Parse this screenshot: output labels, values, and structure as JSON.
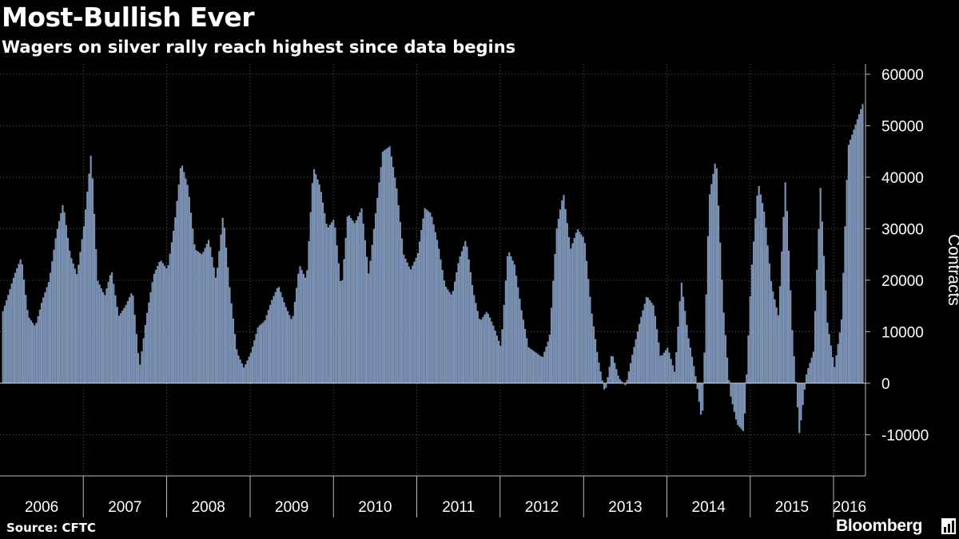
{
  "header": {
    "title": "Most-Bullish Ever",
    "subtitle": "Wagers on silver rally reach highest since data begins"
  },
  "footer": {
    "source": "Source: CFTC",
    "brand": "Bloomberg",
    "brand_icon": "chart-icon"
  },
  "colors": {
    "background": "#000000",
    "bar": "#7B91B3",
    "grid": "#5a5a5a",
    "text": "#ffffff"
  },
  "chart_data": {
    "type": "bar",
    "title": "Most-Bullish Ever",
    "subtitle": "Wagers on silver rally reach highest since data begins",
    "ylabel": "Contracts",
    "xlabel": "",
    "ylim": [
      -18000,
      62000
    ],
    "yticks": [
      -10000,
      0,
      10000,
      20000,
      30000,
      40000,
      50000,
      60000
    ],
    "ytick_labels": [
      "-10000",
      "0",
      "10000",
      "20000",
      "30000",
      "40000",
      "50000",
      "60000"
    ],
    "xlim": [
      "2006-01-01",
      "2016-05-20"
    ],
    "year_labels": [
      "2006",
      "2007",
      "2008",
      "2009",
      "2010",
      "2011",
      "2012",
      "2013",
      "2014",
      "2015",
      "2016"
    ],
    "grid": true,
    "legend": "none",
    "series": [
      {
        "values": [
          [
            "2006-01-10",
            14000
          ],
          [
            "2006-02-01",
            17000
          ],
          [
            "2006-03-01",
            21000
          ],
          [
            "2006-04-01",
            24500
          ],
          [
            "2006-05-01",
            13000
          ],
          [
            "2006-06-01",
            11000
          ],
          [
            "2006-07-01",
            16000
          ],
          [
            "2006-08-01",
            20000
          ],
          [
            "2006-09-01",
            29000
          ],
          [
            "2006-10-01",
            35000
          ],
          [
            "2006-11-01",
            25000
          ],
          [
            "2006-12-01",
            21000
          ],
          [
            "2007-01-01",
            31000
          ],
          [
            "2007-02-01",
            45000
          ],
          [
            "2007-03-01",
            20000
          ],
          [
            "2007-04-01",
            17000
          ],
          [
            "2007-05-01",
            22000
          ],
          [
            "2007-06-01",
            13000
          ],
          [
            "2007-07-01",
            15000
          ],
          [
            "2007-08-01",
            18000
          ],
          [
            "2007-09-01",
            3000
          ],
          [
            "2007-10-01",
            13000
          ],
          [
            "2007-11-01",
            21000
          ],
          [
            "2007-12-01",
            24000
          ],
          [
            "2008-01-01",
            22000
          ],
          [
            "2008-02-01",
            31000
          ],
          [
            "2008-03-01",
            43000
          ],
          [
            "2008-04-01",
            38000
          ],
          [
            "2008-05-01",
            26000
          ],
          [
            "2008-06-01",
            25000
          ],
          [
            "2008-07-01",
            28000
          ],
          [
            "2008-08-01",
            20000
          ],
          [
            "2008-09-01",
            33000
          ],
          [
            "2008-10-01",
            18000
          ],
          [
            "2008-11-01",
            6000
          ],
          [
            "2008-12-01",
            3000
          ],
          [
            "2009-01-01",
            6000
          ],
          [
            "2009-02-01",
            11000
          ],
          [
            "2009-03-01",
            12000
          ],
          [
            "2009-04-01",
            16000
          ],
          [
            "2009-05-01",
            19000
          ],
          [
            "2009-06-01",
            15000
          ],
          [
            "2009-07-01",
            12000
          ],
          [
            "2009-08-01",
            23000
          ],
          [
            "2009-09-01",
            20000
          ],
          [
            "2009-10-01",
            42000
          ],
          [
            "2009-11-01",
            38000
          ],
          [
            "2009-12-01",
            30000
          ],
          [
            "2010-01-01",
            32000
          ],
          [
            "2010-02-01",
            18000
          ],
          [
            "2010-03-01",
            33000
          ],
          [
            "2010-04-01",
            31000
          ],
          [
            "2010-05-01",
            34000
          ],
          [
            "2010-06-01",
            21000
          ],
          [
            "2010-07-01",
            33000
          ],
          [
            "2010-08-01",
            45000
          ],
          [
            "2010-09-01",
            46000
          ],
          [
            "2010-10-01",
            38000
          ],
          [
            "2010-11-01",
            25000
          ],
          [
            "2010-12-01",
            22000
          ],
          [
            "2011-01-01",
            25000
          ],
          [
            "2011-02-01",
            34000
          ],
          [
            "2011-03-01",
            33000
          ],
          [
            "2011-04-01",
            27000
          ],
          [
            "2011-05-01",
            19000
          ],
          [
            "2011-06-01",
            17000
          ],
          [
            "2011-07-01",
            24000
          ],
          [
            "2011-08-01",
            28000
          ],
          [
            "2011-09-01",
            18000
          ],
          [
            "2011-10-01",
            12000
          ],
          [
            "2011-11-01",
            14000
          ],
          [
            "2011-12-01",
            11000
          ],
          [
            "2012-01-01",
            7000
          ],
          [
            "2012-02-01",
            26000
          ],
          [
            "2012-03-01",
            23000
          ],
          [
            "2012-04-01",
            14000
          ],
          [
            "2012-05-01",
            7000
          ],
          [
            "2012-06-01",
            6000
          ],
          [
            "2012-07-01",
            5000
          ],
          [
            "2012-08-01",
            9000
          ],
          [
            "2012-09-01",
            30000
          ],
          [
            "2012-10-01",
            37000
          ],
          [
            "2012-11-01",
            26000
          ],
          [
            "2012-12-01",
            30000
          ],
          [
            "2013-01-01",
            28000
          ],
          [
            "2013-02-01",
            14000
          ],
          [
            "2013-03-01",
            5000
          ],
          [
            "2013-04-01",
            -2000
          ],
          [
            "2013-05-01",
            6000
          ],
          [
            "2013-06-01",
            1000
          ],
          [
            "2013-07-01",
            -500
          ],
          [
            "2013-08-01",
            6000
          ],
          [
            "2013-09-01",
            12000
          ],
          [
            "2013-10-01",
            17000
          ],
          [
            "2013-11-01",
            15000
          ],
          [
            "2013-12-01",
            5000
          ],
          [
            "2014-01-01",
            7000
          ],
          [
            "2014-02-01",
            2000
          ],
          [
            "2014-03-01",
            20000
          ],
          [
            "2014-04-01",
            9000
          ],
          [
            "2014-05-01",
            2000
          ],
          [
            "2014-06-01",
            -8000
          ],
          [
            "2014-07-01",
            36000
          ],
          [
            "2014-08-01",
            44000
          ],
          [
            "2014-09-01",
            15000
          ],
          [
            "2014-10-01",
            -2000
          ],
          [
            "2014-11-01",
            -8000
          ],
          [
            "2014-12-01",
            -9500
          ],
          [
            "2015-01-01",
            21000
          ],
          [
            "2015-02-01",
            39000
          ],
          [
            "2015-03-01",
            33000
          ],
          [
            "2015-04-01",
            19000
          ],
          [
            "2015-05-01",
            13000
          ],
          [
            "2015-06-01",
            40000
          ],
          [
            "2015-07-01",
            10000
          ],
          [
            "2015-08-01",
            -10000
          ],
          [
            "2015-09-01",
            2000
          ],
          [
            "2015-10-01",
            6000
          ],
          [
            "2015-11-01",
            38000
          ],
          [
            "2015-12-01",
            12000
          ],
          [
            "2016-01-01",
            3000
          ],
          [
            "2016-02-01",
            12000
          ],
          [
            "2016-03-01",
            46000
          ],
          [
            "2016-04-01",
            50000
          ],
          [
            "2016-05-10",
            55000
          ]
        ]
      }
    ]
  }
}
